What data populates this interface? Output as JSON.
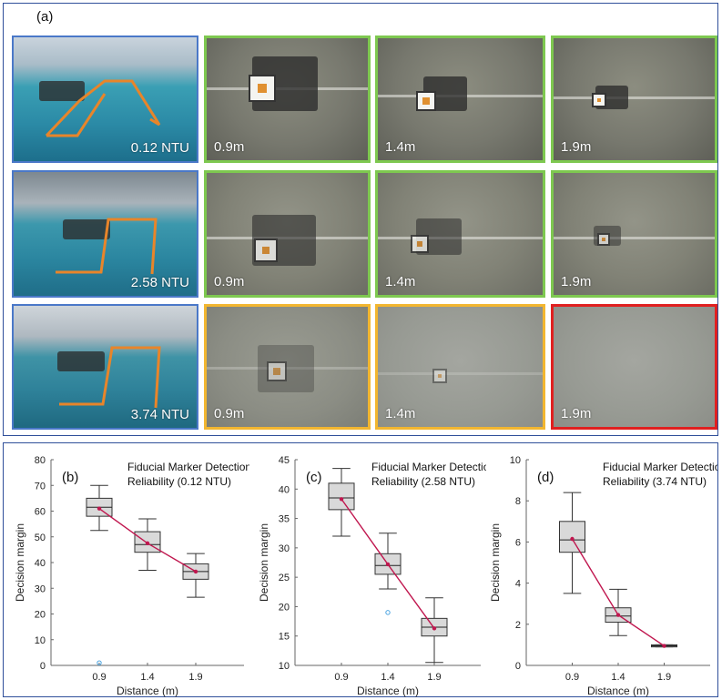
{
  "panel_a": {
    "letter": "(a)",
    "rows": [
      {
        "ntu": "0.12 NTU",
        "distances": [
          "0.9m",
          "1.4m",
          "1.9m"
        ]
      },
      {
        "ntu": "2.58 NTU",
        "distances": [
          "0.9m",
          "1.4m",
          "1.9m"
        ]
      },
      {
        "ntu": "3.74 NTU",
        "distances": [
          "0.9m",
          "1.4m",
          "1.9m"
        ]
      }
    ],
    "colors": {
      "detected_clear": "#7ec850",
      "detected_degraded": "#f2b630",
      "not_detected": "#e02020",
      "pool_frame": "#4a78c8",
      "path": "#e8852a"
    }
  },
  "chart_data": [
    {
      "type": "box",
      "letter": "(b)",
      "title": "Fiducial Marker Detection",
      "title2": "Reliability (0.12 NTU)",
      "xlabel": "Distance (m)",
      "ylabel": "Decision margin",
      "categories": [
        "0.9",
        "1.4",
        "1.9"
      ],
      "ylim": [
        0,
        80
      ],
      "yticks": [
        0,
        10,
        20,
        30,
        40,
        50,
        60,
        70,
        80
      ],
      "boxes": [
        {
          "min": 52.5,
          "q1": 58,
          "median": 61.5,
          "q3": 65,
          "max": 70,
          "mean": 61
        },
        {
          "min": 37,
          "q1": 44,
          "median": 47,
          "q3": 52,
          "max": 57,
          "mean": 47.5
        },
        {
          "min": 26.5,
          "q1": 33.5,
          "median": 36.5,
          "q3": 39.5,
          "max": 43.5,
          "mean": 36.5
        }
      ],
      "outliers": [
        {
          "category": "0.9",
          "value": 1
        }
      ],
      "colors": {
        "box": "#d9d9d9",
        "line": "#c0174f",
        "outlier": "#4aa3e0"
      }
    },
    {
      "type": "box",
      "letter": "(c)",
      "title": "Fiducial Marker Detection",
      "title2": "Reliability (2.58 NTU)",
      "xlabel": "Distance (m)",
      "ylabel": "Decision margin",
      "categories": [
        "0.9",
        "1.4",
        "1.9"
      ],
      "ylim": [
        10,
        45
      ],
      "yticks": [
        10,
        15,
        20,
        25,
        30,
        35,
        40,
        45
      ],
      "boxes": [
        {
          "min": 32,
          "q1": 36.5,
          "median": 38.5,
          "q3": 41,
          "max": 43.5,
          "mean": 38.3
        },
        {
          "min": 23,
          "q1": 25.5,
          "median": 27,
          "q3": 29,
          "max": 32.5,
          "mean": 27.2
        },
        {
          "min": 10.5,
          "q1": 15,
          "median": 16.5,
          "q3": 18,
          "max": 21.5,
          "mean": 16.3
        }
      ],
      "outliers": [
        {
          "category": "1.4",
          "value": 19
        }
      ],
      "colors": {
        "box": "#d9d9d9",
        "line": "#c0174f",
        "outlier": "#4aa3e0"
      }
    },
    {
      "type": "box",
      "letter": "(d)",
      "title": "Fiducial Marker Detection",
      "title2": "Reliability (3.74 NTU)",
      "xlabel": "Distance (m)",
      "ylabel": "Decision margin",
      "categories": [
        "0.9",
        "1.4",
        "1.9"
      ],
      "ylim": [
        0,
        10
      ],
      "yticks": [
        0,
        2,
        4,
        6,
        8,
        10
      ],
      "boxes": [
        {
          "min": 3.5,
          "q1": 5.5,
          "median": 6.1,
          "q3": 7,
          "max": 8.4,
          "mean": 6.15
        },
        {
          "min": 1.45,
          "q1": 2.1,
          "median": 2.4,
          "q3": 2.8,
          "max": 3.7,
          "mean": 2.45
        },
        {
          "min": 0.9,
          "q1": 0.9,
          "median": 0.95,
          "q3": 1,
          "max": 1,
          "mean": 0.95
        }
      ],
      "outliers": [],
      "colors": {
        "box": "#d9d9d9",
        "line": "#c0174f",
        "outlier": "#4aa3e0"
      }
    }
  ]
}
